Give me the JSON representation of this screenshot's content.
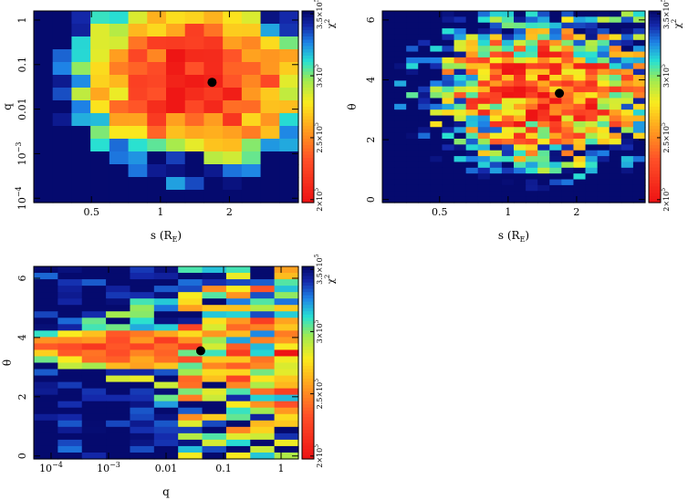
{
  "chart_data": [
    {
      "type": "heatmap",
      "xlabel": "s (R",
      "xlabel_sub": "E",
      "xlabel_close": ")",
      "ylabel": "q",
      "x_scale": "log",
      "y_scale": "log",
      "xlim": [
        0.28,
        4.0
      ],
      "ylim": [
        8e-05,
        1.6
      ],
      "xticks": [
        {
          "v": 0.5,
          "label": "0.5"
        },
        {
          "v": 1,
          "label": "1"
        },
        {
          "v": 2,
          "label": "2"
        }
      ],
      "yticks": [
        {
          "v": 1,
          "label": "1"
        },
        {
          "v": 0.1,
          "label": "0.1"
        },
        {
          "v": 0.01,
          "label": "0.01"
        },
        {
          "v": 0.001,
          "label": "10",
          "sup": "−3"
        },
        {
          "v": 0.0001,
          "label": "10",
          "sup": "−4"
        }
      ],
      "grid": false,
      "best_fit_point": {
        "x": 1.68,
        "y": 0.04
      },
      "colorbar": {
        "label": "χ",
        "label_sup": "2",
        "min": 200000,
        "max": 350000,
        "ticks": [
          {
            "v": 200000,
            "m": "2×10",
            "e": "5"
          },
          {
            "v": 250000,
            "m": "2.5×10",
            "e": "5"
          },
          {
            "v": 300000,
            "m": "3×10",
            "e": "5"
          },
          {
            "v": 350000,
            "m": "3.5×10",
            "e": "5"
          }
        ]
      }
    },
    {
      "type": "heatmap",
      "xlabel": "s (R",
      "xlabel_sub": "E",
      "xlabel_close": ")",
      "ylabel": "θ",
      "x_scale": "log",
      "y_scale": "linear",
      "xlim": [
        0.28,
        4.0
      ],
      "ylim": [
        -0.1,
        6.3
      ],
      "xticks": [
        {
          "v": 0.5,
          "label": "0.5"
        },
        {
          "v": 1,
          "label": "1"
        },
        {
          "v": 2,
          "label": "2"
        }
      ],
      "yticks": [
        {
          "v": 0,
          "label": "0"
        },
        {
          "v": 2,
          "label": "2"
        },
        {
          "v": 4,
          "label": "4"
        },
        {
          "v": 6,
          "label": "6"
        }
      ],
      "grid": false,
      "best_fit_point": {
        "x": 1.68,
        "y": 3.55
      },
      "colorbar": {
        "label": "χ",
        "label_sup": "2",
        "min": 200000,
        "max": 350000,
        "ticks": [
          {
            "v": 200000,
            "m": "2×10",
            "e": "5"
          },
          {
            "v": 250000,
            "m": "2.5×10",
            "e": "5"
          },
          {
            "v": 300000,
            "m": "3×10",
            "e": "5"
          },
          {
            "v": 350000,
            "m": "3.5×10",
            "e": "5"
          }
        ]
      }
    },
    {
      "type": "heatmap",
      "xlabel": "q",
      "ylabel": "θ",
      "x_scale": "log",
      "y_scale": "linear",
      "xlim": [
        5e-05,
        2.0
      ],
      "ylim": [
        -0.1,
        6.4
      ],
      "xticks": [
        {
          "v": 0.0001,
          "label": "10",
          "sup": "−4"
        },
        {
          "v": 0.001,
          "label": "10",
          "sup": "−3"
        },
        {
          "v": 0.01,
          "label": "0.01"
        },
        {
          "v": 0.1,
          "label": "0.1"
        },
        {
          "v": 1,
          "label": "1"
        }
      ],
      "yticks": [
        {
          "v": 0,
          "label": "0"
        },
        {
          "v": 2,
          "label": "2"
        },
        {
          "v": 4,
          "label": "4"
        },
        {
          "v": 6,
          "label": "6"
        }
      ],
      "grid": false,
      "best_fit_point": {
        "x": 0.04,
        "y": 3.55
      },
      "colorbar": {
        "label": "χ",
        "label_sup": "2",
        "min": 200000,
        "max": 350000,
        "ticks": [
          {
            "v": 200000,
            "m": "2×10",
            "e": "5"
          },
          {
            "v": 250000,
            "m": "2.5×10",
            "e": "5"
          },
          {
            "v": 300000,
            "m": "3×10",
            "e": "5"
          },
          {
            "v": 350000,
            "m": "3.5×10",
            "e": "5"
          }
        ]
      }
    }
  ]
}
